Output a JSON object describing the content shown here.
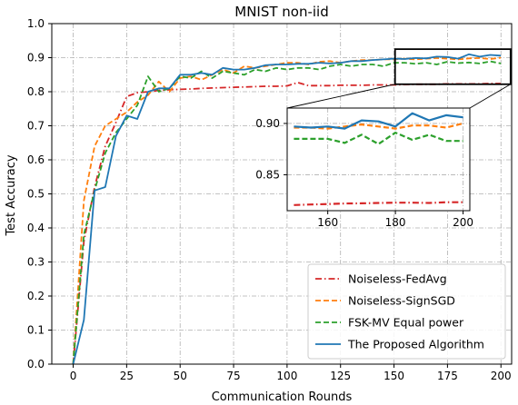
{
  "chart_data": {
    "type": "line",
    "title": "MNIST non-iid",
    "xlabel": "Communication Rounds",
    "ylabel": "Test Accuracy",
    "xlim": [
      -10,
      205
    ],
    "ylim": [
      0.0,
      1.0
    ],
    "xticks": [
      0,
      25,
      50,
      75,
      100,
      125,
      150,
      175,
      200
    ],
    "yticks": [
      0.0,
      0.1,
      0.2,
      0.3,
      0.4,
      0.5,
      0.6,
      0.7,
      0.8,
      0.9,
      1.0
    ],
    "xtick_labels": [
      "0",
      "25",
      "50",
      "75",
      "100",
      "125",
      "150",
      "175",
      "200"
    ],
    "ytick_labels": [
      "0.0",
      "0.1",
      "0.2",
      "0.3",
      "0.4",
      "0.5",
      "0.6",
      "0.7",
      "0.8",
      "0.9",
      "1.0"
    ],
    "grid": true,
    "legend_position": "lower-right",
    "series": [
      {
        "name": "Noiseless-FedAvg",
        "color": "#d62728",
        "dash": "dashdot",
        "x": [
          0,
          5,
          10,
          15,
          20,
          25,
          30,
          35,
          40,
          45,
          50,
          55,
          60,
          65,
          70,
          75,
          80,
          85,
          90,
          95,
          100,
          105,
          110,
          115,
          120,
          125,
          130,
          135,
          140,
          145,
          150,
          155,
          160,
          165,
          170,
          175,
          180,
          185,
          190,
          195,
          200
        ],
        "y": [
          0.0,
          0.36,
          0.52,
          0.64,
          0.71,
          0.786,
          0.797,
          0.8,
          0.804,
          0.806,
          0.807,
          0.808,
          0.81,
          0.811,
          0.812,
          0.813,
          0.814,
          0.815,
          0.816,
          0.816,
          0.817,
          0.827,
          0.818,
          0.818,
          0.818,
          0.819,
          0.819,
          0.819,
          0.82,
          0.82,
          0.82,
          0.821,
          0.822,
          0.822,
          0.822,
          0.823,
          0.823,
          0.823,
          0.823,
          0.824,
          0.824
        ]
      },
      {
        "name": "Noiseless-SignSGD",
        "color": "#ff7f0e",
        "dash": "dashed",
        "x": [
          0,
          5,
          10,
          15,
          20,
          25,
          30,
          35,
          40,
          45,
          50,
          55,
          60,
          65,
          70,
          75,
          80,
          85,
          90,
          95,
          100,
          105,
          110,
          115,
          120,
          125,
          130,
          135,
          140,
          145,
          150,
          155,
          160,
          165,
          170,
          175,
          180,
          185,
          190,
          195,
          200
        ],
        "y": [
          0.0,
          0.48,
          0.64,
          0.7,
          0.72,
          0.74,
          0.77,
          0.79,
          0.83,
          0.8,
          0.84,
          0.845,
          0.835,
          0.85,
          0.865,
          0.855,
          0.875,
          0.87,
          0.875,
          0.88,
          0.885,
          0.885,
          0.88,
          0.888,
          0.89,
          0.885,
          0.89,
          0.893,
          0.893,
          0.895,
          0.895,
          0.897,
          0.895,
          0.897,
          0.899,
          0.897,
          0.895,
          0.898,
          0.899,
          0.896,
          0.9
        ]
      },
      {
        "name": "FSK-MV Equal power",
        "color": "#2ca02c",
        "dash": "dashed",
        "x": [
          0,
          5,
          10,
          15,
          20,
          25,
          30,
          35,
          40,
          45,
          50,
          55,
          60,
          65,
          70,
          75,
          80,
          85,
          90,
          95,
          100,
          105,
          110,
          115,
          120,
          125,
          130,
          135,
          140,
          145,
          150,
          155,
          160,
          165,
          170,
          175,
          180,
          185,
          190,
          195,
          200
        ],
        "y": [
          0.0,
          0.38,
          0.51,
          0.62,
          0.68,
          0.72,
          0.76,
          0.845,
          0.8,
          0.81,
          0.845,
          0.84,
          0.86,
          0.84,
          0.86,
          0.855,
          0.85,
          0.865,
          0.86,
          0.87,
          0.865,
          0.87,
          0.87,
          0.865,
          0.875,
          0.88,
          0.875,
          0.88,
          0.88,
          0.875,
          0.885,
          0.885,
          0.882,
          0.885,
          0.88,
          0.888,
          0.884,
          0.886,
          0.883,
          0.889,
          0.883
        ]
      },
      {
        "name": "The Proposed Algorithm",
        "color": "#1f77b4",
        "dash": "solid",
        "x": [
          0,
          5,
          10,
          15,
          20,
          25,
          30,
          35,
          40,
          45,
          50,
          55,
          60,
          65,
          70,
          75,
          80,
          85,
          90,
          95,
          100,
          105,
          110,
          115,
          120,
          125,
          130,
          135,
          140,
          145,
          150,
          155,
          160,
          165,
          170,
          175,
          180,
          185,
          190,
          195,
          200
        ],
        "y": [
          0.0,
          0.13,
          0.51,
          0.52,
          0.67,
          0.73,
          0.72,
          0.8,
          0.81,
          0.81,
          0.85,
          0.85,
          0.855,
          0.85,
          0.87,
          0.865,
          0.865,
          0.87,
          0.878,
          0.88,
          0.88,
          0.882,
          0.882,
          0.885,
          0.883,
          0.885,
          0.89,
          0.89,
          0.893,
          0.895,
          0.897,
          0.896,
          0.899,
          0.898,
          0.903,
          0.902,
          0.897,
          0.91,
          0.903,
          0.908,
          0.906
        ]
      }
    ],
    "inset": {
      "xlim": [
        148,
        202
      ],
      "ylim": [
        0.815,
        0.915
      ],
      "xticks": [
        160,
        180,
        200
      ],
      "yticks": [
        0.85,
        0.9
      ],
      "xtick_labels": [
        "160",
        "180",
        "200"
      ],
      "ytick_labels": [
        "0.85",
        "0.90"
      ],
      "series": [
        {
          "name": "Noiseless-FedAvg",
          "x": [
            150,
            155,
            160,
            165,
            170,
            175,
            180,
            185,
            190,
            195,
            200
          ],
          "y": [
            0.8205,
            0.821,
            0.8215,
            0.822,
            0.8222,
            0.8225,
            0.8228,
            0.8228,
            0.8225,
            0.8232,
            0.8232
          ]
        },
        {
          "name": "Noiseless-SignSGD",
          "x": [
            150,
            155,
            160,
            165,
            170,
            175,
            180,
            185,
            190,
            195,
            200
          ],
          "y": [
            0.896,
            0.896,
            0.895,
            0.897,
            0.899,
            0.897,
            0.895,
            0.898,
            0.898,
            0.896,
            0.9
          ]
        },
        {
          "name": "FSK-MV Equal power",
          "x": [
            150,
            155,
            160,
            165,
            170,
            175,
            180,
            185,
            190,
            195,
            200
          ],
          "y": [
            0.885,
            0.885,
            0.885,
            0.881,
            0.889,
            0.88,
            0.891,
            0.884,
            0.889,
            0.883,
            0.883
          ]
        },
        {
          "name": "The Proposed Algorithm",
          "x": [
            150,
            155,
            160,
            165,
            170,
            175,
            180,
            185,
            190,
            195,
            200
          ],
          "y": [
            0.897,
            0.896,
            0.897,
            0.895,
            0.903,
            0.902,
            0.897,
            0.91,
            0.903,
            0.908,
            0.906
          ]
        }
      ]
    }
  }
}
